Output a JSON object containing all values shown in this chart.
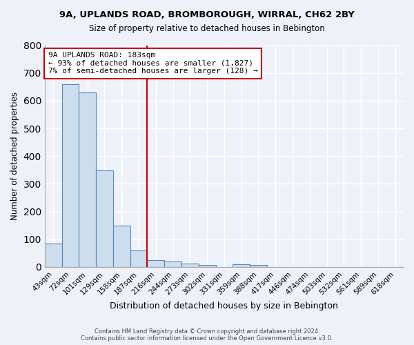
{
  "title": "9A, UPLANDS ROAD, BROMBOROUGH, WIRRAL, CH62 2BY",
  "subtitle": "Size of property relative to detached houses in Bebington",
  "xlabel": "Distribution of detached houses by size in Bebington",
  "ylabel": "Number of detached properties",
  "footnote1": "Contains HM Land Registry data © Crown copyright and database right 2024.",
  "footnote2": "Contains public sector information licensed under the Open Government Licence v3.0.",
  "categories": [
    "43sqm",
    "72sqm",
    "101sqm",
    "129sqm",
    "158sqm",
    "187sqm",
    "216sqm",
    "244sqm",
    "273sqm",
    "302sqm",
    "331sqm",
    "359sqm",
    "388sqm",
    "417sqm",
    "446sqm",
    "474sqm",
    "503sqm",
    "532sqm",
    "561sqm",
    "589sqm",
    "618sqm"
  ],
  "values": [
    85,
    660,
    630,
    348,
    148,
    60,
    25,
    20,
    13,
    8,
    0,
    10,
    8,
    0,
    0,
    0,
    0,
    0,
    0,
    0,
    0
  ],
  "bar_color": "#ccdded",
  "bar_edge_color": "#5588bb",
  "bg_color": "#eef2f8",
  "grid_color": "#ffffff",
  "red_line_x": 5.5,
  "annotation_line1": "9A UPLANDS ROAD: 183sqm",
  "annotation_line2": "← 93% of detached houses are smaller (1,827)",
  "annotation_line3": "7% of semi-detached houses are larger (128) →",
  "annotation_box_color": "#ffffff",
  "annotation_box_edge": "#cc0000",
  "ylim": [
    0,
    800
  ],
  "yticks": [
    0,
    100,
    200,
    300,
    400,
    500,
    600,
    700,
    800
  ]
}
